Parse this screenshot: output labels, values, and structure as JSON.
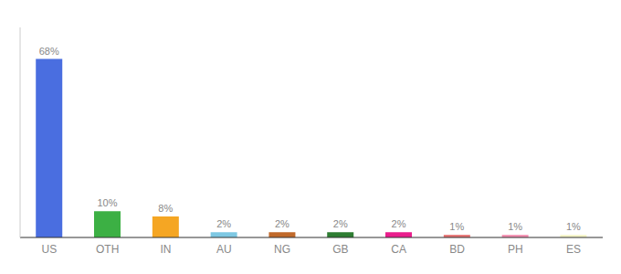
{
  "chart_data": {
    "type": "bar",
    "categories": [
      "US",
      "OTH",
      "IN",
      "AU",
      "NG",
      "GB",
      "CA",
      "BD",
      "PH",
      "ES"
    ],
    "values": [
      68,
      10,
      8,
      2,
      2,
      2,
      2,
      1,
      1,
      1
    ],
    "value_labels": [
      "68%",
      "10%",
      "8%",
      "2%",
      "2%",
      "2%",
      "2%",
      "1%",
      "1%",
      "1%"
    ],
    "colors": [
      "#4a6ee0",
      "#3cb044",
      "#f5a623",
      "#7ec8e3",
      "#c0692a",
      "#2e7d32",
      "#e91e8c",
      "#e57373",
      "#f48fb1",
      "#f5f5c8"
    ],
    "ylim": [
      0,
      80
    ],
    "grid": false,
    "tick_labels": "x"
  }
}
